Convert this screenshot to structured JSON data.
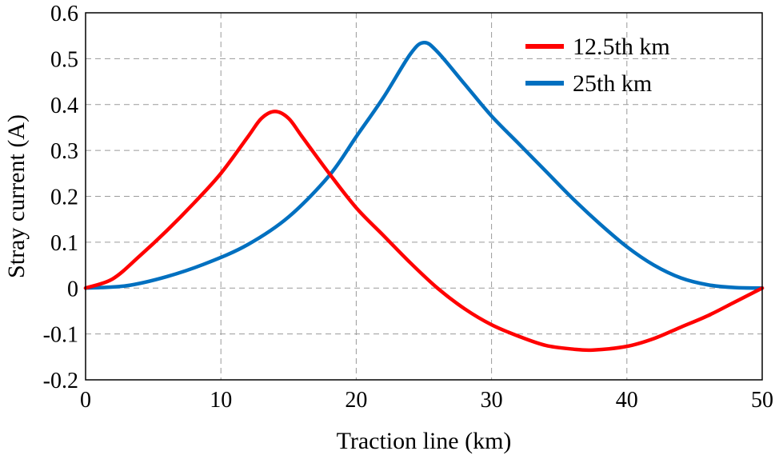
{
  "chart_data": {
    "type": "line",
    "xlabel": "Traction line (km)",
    "ylabel": "Stray current (A)",
    "xlim": [
      0,
      50
    ],
    "ylim": [
      -0.2,
      0.6
    ],
    "xticks": [
      0,
      10,
      20,
      30,
      40,
      50
    ],
    "xtick_labels": [
      "0",
      "10",
      "20",
      "30",
      "40",
      "50"
    ],
    "yticks": [
      -0.2,
      -0.1,
      0,
      0.1,
      0.2,
      0.3,
      0.4,
      0.5,
      0.6
    ],
    "ytick_labels": [
      "-0.2",
      "-0.1",
      "0",
      "0.1",
      "0.2",
      "0.3",
      "0.4",
      "0.5",
      "0.6"
    ],
    "grid": true,
    "legend_position": "top-right",
    "series": [
      {
        "name": "12.5th km",
        "color": "#ff0000",
        "x": [
          0,
          2,
          4,
          6,
          8,
          10,
          12,
          13,
          14,
          15,
          16,
          18,
          20,
          22,
          24,
          26,
          28,
          30,
          32,
          34,
          36,
          37.5,
          40,
          42,
          44,
          46,
          48,
          50
        ],
        "y": [
          0,
          0.02,
          0.07,
          0.125,
          0.185,
          0.25,
          0.33,
          0.37,
          0.385,
          0.37,
          0.33,
          0.25,
          0.175,
          0.115,
          0.055,
          0.0,
          -0.045,
          -0.08,
          -0.105,
          -0.125,
          -0.133,
          -0.135,
          -0.127,
          -0.11,
          -0.085,
          -0.06,
          -0.03,
          0.0
        ]
      },
      {
        "name": "25th km",
        "color": "#0070c0",
        "x": [
          0,
          3,
          6,
          9,
          12,
          15,
          18,
          20,
          22,
          24,
          25,
          26,
          28,
          30,
          32,
          34,
          36,
          38,
          40,
          42,
          44,
          46,
          48,
          50
        ],
        "y": [
          0,
          0.005,
          0.025,
          0.055,
          0.095,
          0.155,
          0.245,
          0.33,
          0.415,
          0.51,
          0.535,
          0.515,
          0.445,
          0.375,
          0.315,
          0.255,
          0.195,
          0.14,
          0.09,
          0.05,
          0.022,
          0.007,
          0.001,
          0.0
        ]
      }
    ]
  }
}
